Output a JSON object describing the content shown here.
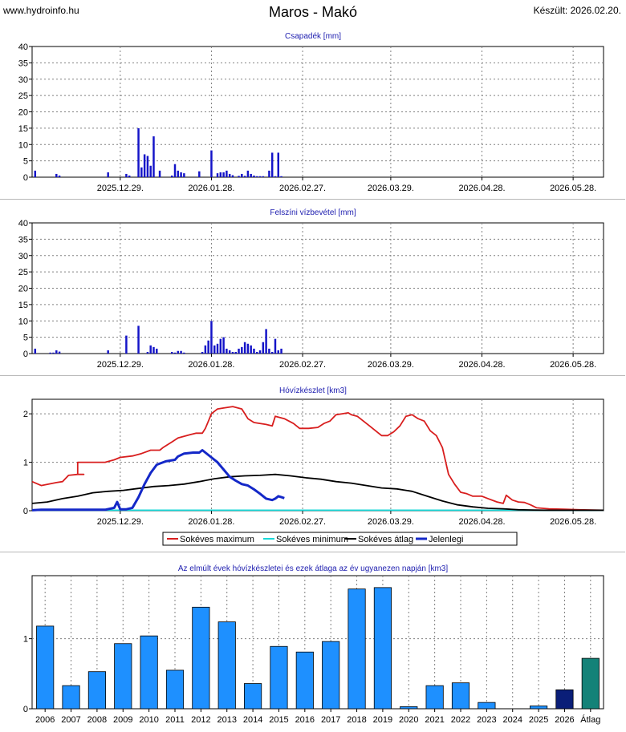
{
  "header": {
    "site": "www.hydroinfo.hu",
    "title": "Maros - Makó",
    "created": "Készült: 2026.02.20."
  },
  "colors": {
    "bar_blue": "#1414c8",
    "max_red": "#d81e1e",
    "min_cyan": "#18d8d8",
    "avg_black": "#000000",
    "current_blue": "#1428c8",
    "year_bar": "#1e90ff",
    "year_bar_current": "#0a1e78",
    "year_bar_avg": "#148278",
    "panel_title": "#2020b0"
  },
  "chart_data": [
    {
      "type": "bar",
      "title": "Csapadék [mm]",
      "ylim": [
        0,
        40
      ],
      "yticks": [
        0,
        5,
        10,
        15,
        20,
        25,
        30,
        35,
        40
      ],
      "x_day_range": [
        0,
        188
      ],
      "xtick_days": [
        29,
        59,
        89,
        118,
        148,
        178
      ],
      "xtick_labels": [
        "2025.12.29.",
        "2026.01.28.",
        "2026.02.27.",
        "2026.03.29.",
        "2026.04.28.",
        "2026.05.28."
      ],
      "days": [
        1,
        8,
        9,
        25,
        31,
        32,
        35,
        36,
        37,
        38,
        39,
        40,
        42,
        46,
        47,
        48,
        49,
        50,
        55,
        59,
        61,
        62,
        63,
        64,
        65,
        66,
        68,
        69,
        70,
        71,
        72,
        73,
        74,
        75,
        76,
        78,
        79,
        80,
        81,
        82
      ],
      "values": [
        2,
        1,
        0.5,
        1.5,
        1,
        0.5,
        15,
        3,
        7,
        6.5,
        3.5,
        12.5,
        2,
        0.5,
        4,
        2,
        1.5,
        1.2,
        1.8,
        8.2,
        1.2,
        1.5,
        1.5,
        2,
        1,
        0.6,
        0.4,
        1,
        0.4,
        2,
        1,
        0.5,
        0.3,
        0.3,
        0.3,
        2,
        7.5,
        0.3,
        7.5,
        0.3
      ]
    },
    {
      "type": "bar",
      "title": "Felszíni vízbevétel [mm]",
      "ylim": [
        0,
        40
      ],
      "yticks": [
        0,
        5,
        10,
        15,
        20,
        25,
        30,
        35,
        40
      ],
      "x_day_range": [
        0,
        188
      ],
      "xtick_days": [
        29,
        59,
        89,
        118,
        148,
        178
      ],
      "xtick_labels": [
        "2025.12.29.",
        "2026.01.28.",
        "2026.02.27.",
        "2026.03.29.",
        "2026.04.28.",
        "2026.05.28."
      ],
      "days": [
        1,
        6,
        7,
        8,
        9,
        25,
        31,
        35,
        38,
        39,
        40,
        41,
        46,
        47,
        48,
        49,
        50,
        56,
        57,
        58,
        59,
        60,
        61,
        62,
        63,
        64,
        65,
        66,
        67,
        68,
        69,
        70,
        71,
        72,
        73,
        74,
        75,
        76,
        77,
        78,
        79,
        80,
        81,
        82
      ],
      "values": [
        1.5,
        0.3,
        0.3,
        1,
        0.6,
        1,
        5.5,
        8.5,
        0.5,
        2.5,
        2,
        1.5,
        0.5,
        0.3,
        0.8,
        0.8,
        0.3,
        0.5,
        2.5,
        4,
        10,
        2.5,
        3,
        4.5,
        5,
        1.5,
        1,
        0.5,
        0.5,
        1.5,
        2,
        3.5,
        3,
        2.5,
        1.5,
        0.5,
        1,
        3.5,
        7.5,
        1.5,
        0.5,
        4.5,
        1,
        1.5
      ]
    },
    {
      "type": "line",
      "title": "Hóvízkészlet [km3]",
      "ylim": [
        0,
        2.3
      ],
      "yticks": [
        0,
        1,
        2
      ],
      "x_day_range": [
        0,
        188
      ],
      "xtick_days": [
        29,
        59,
        89,
        118,
        148,
        178
      ],
      "xtick_labels": [
        "2025.12.29.",
        "2026.01.28.",
        "2026.02.27.",
        "2026.03.29.",
        "2026.04.28.",
        "2026.05.28."
      ],
      "series": [
        {
          "name": "Sokéves maximum",
          "color_key": "max_red",
          "points": [
            [
              0,
              0.6
            ],
            [
              3,
              0.52
            ],
            [
              8,
              0.58
            ],
            [
              10,
              0.6
            ],
            [
              12,
              0.73
            ],
            [
              15,
              0.75
            ],
            [
              16,
              0.75
            ],
            [
              17,
              0.75
            ],
            [
              15,
              0.75
            ],
            [
              15,
              1.0
            ],
            [
              18,
              1.0
            ],
            [
              20,
              1.0
            ],
            [
              24,
              1.0
            ],
            [
              27,
              1.05
            ],
            [
              29,
              1.1
            ],
            [
              33,
              1.13
            ],
            [
              36,
              1.18
            ],
            [
              39,
              1.25
            ],
            [
              42,
              1.25
            ],
            [
              43,
              1.3
            ],
            [
              46,
              1.42
            ],
            [
              48,
              1.5
            ],
            [
              52,
              1.57
            ],
            [
              54,
              1.6
            ],
            [
              56,
              1.6
            ],
            [
              57,
              1.7
            ],
            [
              58,
              1.85
            ],
            [
              59,
              2.0
            ],
            [
              61,
              2.1
            ],
            [
              63,
              2.12
            ],
            [
              66,
              2.15
            ],
            [
              69,
              2.1
            ],
            [
              71,
              1.9
            ],
            [
              73,
              1.82
            ],
            [
              77,
              1.78
            ],
            [
              79,
              1.75
            ],
            [
              80,
              1.95
            ],
            [
              83,
              1.9
            ],
            [
              86,
              1.8
            ],
            [
              88,
              1.7
            ],
            [
              91,
              1.7
            ],
            [
              94,
              1.72
            ],
            [
              96,
              1.8
            ],
            [
              98,
              1.85
            ],
            [
              100,
              1.98
            ],
            [
              102,
              2.0
            ],
            [
              104,
              2.02
            ],
            [
              105,
              1.98
            ],
            [
              107,
              1.95
            ],
            [
              109,
              1.85
            ],
            [
              111,
              1.75
            ],
            [
              113,
              1.65
            ],
            [
              115,
              1.55
            ],
            [
              117,
              1.55
            ],
            [
              119,
              1.63
            ],
            [
              121,
              1.75
            ],
            [
              123,
              1.95
            ],
            [
              125,
              1.98
            ],
            [
              127,
              1.9
            ],
            [
              129,
              1.85
            ],
            [
              131,
              1.65
            ],
            [
              133,
              1.55
            ],
            [
              135,
              1.3
            ],
            [
              137,
              0.75
            ],
            [
              139,
              0.55
            ],
            [
              141,
              0.38
            ],
            [
              143,
              0.35
            ],
            [
              145,
              0.3
            ],
            [
              148,
              0.3
            ],
            [
              150,
              0.25
            ],
            [
              153,
              0.18
            ],
            [
              155,
              0.15
            ],
            [
              156,
              0.32
            ],
            [
              158,
              0.22
            ],
            [
              160,
              0.18
            ],
            [
              162,
              0.17
            ],
            [
              164,
              0.12
            ],
            [
              166,
              0.06
            ],
            [
              170,
              0.04
            ],
            [
              175,
              0.03
            ],
            [
              180,
              0.02
            ],
            [
              188,
              0.01
            ]
          ]
        },
        {
          "name": "Sokéves minimum",
          "color_key": "min_cyan",
          "points": [
            [
              0,
              0.01
            ],
            [
              188,
              0.01
            ]
          ]
        },
        {
          "name": "Sokéves átlag",
          "color_key": "avg_black",
          "points": [
            [
              0,
              0.15
            ],
            [
              5,
              0.18
            ],
            [
              10,
              0.25
            ],
            [
              15,
              0.3
            ],
            [
              20,
              0.37
            ],
            [
              25,
              0.4
            ],
            [
              30,
              0.42
            ],
            [
              35,
              0.46
            ],
            [
              40,
              0.5
            ],
            [
              45,
              0.52
            ],
            [
              50,
              0.55
            ],
            [
              55,
              0.6
            ],
            [
              60,
              0.66
            ],
            [
              65,
              0.7
            ],
            [
              70,
              0.72
            ],
            [
              75,
              0.73
            ],
            [
              80,
              0.75
            ],
            [
              85,
              0.72
            ],
            [
              90,
              0.68
            ],
            [
              95,
              0.65
            ],
            [
              100,
              0.6
            ],
            [
              105,
              0.57
            ],
            [
              110,
              0.52
            ],
            [
              115,
              0.47
            ],
            [
              120,
              0.45
            ],
            [
              125,
              0.4
            ],
            [
              130,
              0.3
            ],
            [
              135,
              0.2
            ],
            [
              140,
              0.12
            ],
            [
              145,
              0.08
            ],
            [
              150,
              0.05
            ],
            [
              155,
              0.04
            ],
            [
              160,
              0.02
            ],
            [
              165,
              0.015
            ],
            [
              170,
              0.01
            ],
            [
              188,
              0.01
            ]
          ]
        },
        {
          "name": "Jelenlegi",
          "color_key": "current_blue",
          "points": [
            [
              0,
              0.01
            ],
            [
              3,
              0.02
            ],
            [
              24,
              0.02
            ],
            [
              27,
              0.06
            ],
            [
              28,
              0.18
            ],
            [
              29,
              0.03
            ],
            [
              31,
              0.03
            ],
            [
              33,
              0.06
            ],
            [
              35,
              0.28
            ],
            [
              37,
              0.55
            ],
            [
              39,
              0.78
            ],
            [
              41,
              0.95
            ],
            [
              44,
              1.02
            ],
            [
              47,
              1.05
            ],
            [
              48,
              1.12
            ],
            [
              50,
              1.18
            ],
            [
              53,
              1.2
            ],
            [
              55,
              1.2
            ],
            [
              56,
              1.25
            ],
            [
              57,
              1.2
            ],
            [
              59,
              1.1
            ],
            [
              61,
              1.0
            ],
            [
              63,
              0.85
            ],
            [
              65,
              0.7
            ],
            [
              67,
              0.62
            ],
            [
              69,
              0.55
            ],
            [
              71,
              0.52
            ],
            [
              73,
              0.44
            ],
            [
              75,
              0.35
            ],
            [
              77,
              0.25
            ],
            [
              79,
              0.22
            ],
            [
              80,
              0.25
            ],
            [
              81,
              0.3
            ],
            [
              82,
              0.28
            ],
            [
              83,
              0.26
            ]
          ]
        }
      ]
    },
    {
      "type": "bar",
      "title": "Az elmúlt évek hóvízkészletei és ezek átlaga az év ugyanezen napján [km3]",
      "ylim": [
        0,
        1.9
      ],
      "yticks": [
        0,
        1
      ],
      "categories": [
        "2006",
        "2007",
        "2008",
        "2009",
        "2010",
        "2011",
        "2012",
        "2013",
        "2014",
        "2015",
        "2016",
        "2017",
        "2018",
        "2019",
        "2020",
        "2021",
        "2022",
        "2023",
        "2024",
        "2025",
        "2026",
        "Átlag"
      ],
      "values": [
        1.18,
        0.33,
        0.53,
        0.93,
        1.04,
        0.55,
        1.45,
        1.24,
        0.36,
        0.89,
        0.81,
        0.96,
        1.71,
        1.73,
        0.03,
        0.33,
        0.37,
        0.09,
        0.0,
        0.04,
        0.27,
        0.72
      ]
    }
  ]
}
